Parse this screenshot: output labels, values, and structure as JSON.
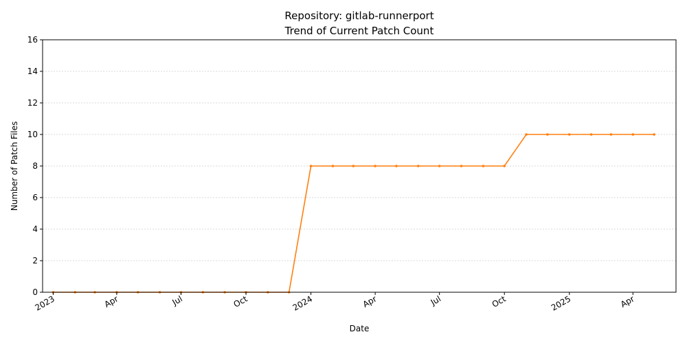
{
  "chart_data": {
    "type": "line",
    "title_line1": "Repository: gitlab-runnerport",
    "title_line2": "Trend of Current Patch Count",
    "xlabel": "Date",
    "ylabel": "Number of Patch Files",
    "ylim": [
      0,
      16
    ],
    "yticks": [
      0,
      2,
      4,
      6,
      8,
      10,
      12,
      14,
      16
    ],
    "xlim": [
      "2022-12-17",
      "2025-06-01"
    ],
    "xticks": [
      {
        "date": "2023-01-01",
        "label": "2023"
      },
      {
        "date": "2023-04-01",
        "label": "Apr"
      },
      {
        "date": "2023-07-01",
        "label": "Jul"
      },
      {
        "date": "2023-10-01",
        "label": "Oct"
      },
      {
        "date": "2024-01-01",
        "label": "2024"
      },
      {
        "date": "2024-04-01",
        "label": "Apr"
      },
      {
        "date": "2024-07-01",
        "label": "Jul"
      },
      {
        "date": "2024-10-01",
        "label": "Oct"
      },
      {
        "date": "2025-01-01",
        "label": "2025"
      },
      {
        "date": "2025-04-01",
        "label": "Apr"
      }
    ],
    "grid": "y-dashed",
    "color": "#ff7f0e",
    "series": [
      {
        "x": [
          "2023-01-01",
          "2023-02-01",
          "2023-03-01",
          "2023-04-01",
          "2023-05-01",
          "2023-06-01",
          "2023-07-01",
          "2023-08-01",
          "2023-09-01",
          "2023-10-01",
          "2023-11-01",
          "2023-12-01",
          "2024-01-01",
          "2024-02-01",
          "2024-03-01",
          "2024-04-01",
          "2024-05-01",
          "2024-06-01",
          "2024-07-01",
          "2024-08-01",
          "2024-09-01",
          "2024-10-01",
          "2024-11-01",
          "2024-12-01",
          "2025-01-01",
          "2025-02-01",
          "2025-03-01",
          "2025-04-01",
          "2025-05-01"
        ],
        "values": [
          0,
          0,
          0,
          0,
          0,
          0,
          0,
          0,
          0,
          0,
          0,
          0,
          8,
          8,
          8,
          8,
          8,
          8,
          8,
          8,
          8,
          8,
          10,
          10,
          10,
          10,
          10,
          10,
          10
        ]
      }
    ]
  }
}
